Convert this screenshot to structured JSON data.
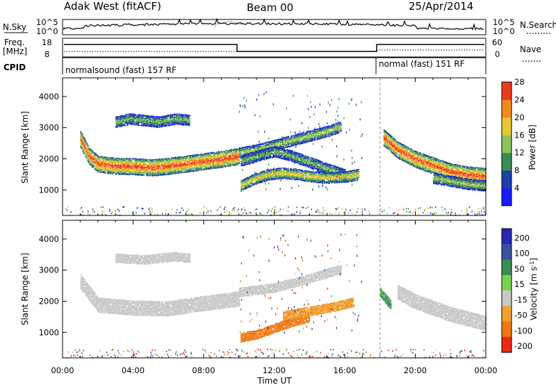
{
  "header": {
    "station": "Adak West (fitACF)",
    "beam": "Beam 00",
    "date": "25/Apr/2014"
  },
  "noise_panel": {
    "left_label": "N.Sky",
    "right_label": "N.Search",
    "left_ticks": [
      "10^5",
      "10^0"
    ],
    "right_ticks": [
      "10^5",
      "10^0"
    ]
  },
  "freq_panel": {
    "left_label": "Freq.",
    "left_unit": "[MHz]",
    "left_ticks": [
      "18",
      "8"
    ],
    "right_label": "Nave",
    "right_ticks": [
      "60",
      "0"
    ]
  },
  "cpid_panel": {
    "label": "CPID",
    "segments": [
      {
        "name": "normalsound (fast) 157 RF",
        "start_hour": 0,
        "end_hour": 18
      },
      {
        "name": "normal (fast) 151 RF",
        "start_hour": 18,
        "end_hour": 24
      }
    ]
  },
  "chart_data": [
    {
      "type": "heatmap",
      "title": "",
      "quantity": "Power",
      "ylabel": "Slant Range [km]",
      "xlabel": "Time UT",
      "xlim": [
        0,
        24
      ],
      "ylim": [
        180,
        4600
      ],
      "x_ticks": [
        "00:00",
        "04:00",
        "08:00",
        "12:00",
        "16:00",
        "20:00",
        "00:00"
      ],
      "y_ticks": [
        1000,
        2000,
        3000,
        4000
      ],
      "colorbar": {
        "label": "Power [dB]",
        "ticks": [
          4,
          8,
          12,
          16,
          20,
          24,
          28
        ],
        "range": [
          0,
          30
        ],
        "colors": [
          "#1a1aff",
          "#1f3fb0",
          "#3c8c55",
          "#8cc35a",
          "#e6c832",
          "#f08c1e",
          "#eb3c1e"
        ]
      },
      "echo_bands": [
        {
          "name": "main",
          "x": [
            1.0,
            1.5,
            2.0,
            3.0,
            4.0,
            5.0,
            6.0,
            7.0,
            8.0,
            9.0,
            10.0
          ],
          "y": [
            2650,
            2100,
            1850,
            1780,
            1770,
            1730,
            1780,
            1850,
            1930,
            2000,
            2100
          ],
          "peak_db": 28
        },
        {
          "name": "high-patch",
          "x": [
            3.0,
            3.8,
            4.6,
            5.4,
            6.4,
            7.2
          ],
          "y": [
            3200,
            3300,
            3250,
            3200,
            3300,
            3250
          ],
          "peak_db": 14
        },
        {
          "name": "rising-arc",
          "x": [
            10.0,
            11.0,
            12.0,
            13.0,
            14.0,
            15.0,
            15.8
          ],
          "y": [
            2200,
            2300,
            2450,
            2600,
            2750,
            2900,
            3050
          ],
          "peak_db": 16
        },
        {
          "name": "mid-arc",
          "x": [
            10.1,
            11.0,
            12.0,
            13.0,
            14.0,
            15.0,
            16.0
          ],
          "y": [
            1950,
            2100,
            2250,
            2100,
            1900,
            1700,
            1500
          ],
          "peak_db": 14
        },
        {
          "name": "low-arc",
          "x": [
            10.1,
            10.8,
            11.6,
            12.4,
            13.2,
            14.0,
            15.0,
            16.2,
            16.8
          ],
          "y": [
            1150,
            1350,
            1500,
            1560,
            1520,
            1450,
            1400,
            1450,
            1520
          ],
          "peak_db": 20
        },
        {
          "name": "evening",
          "x": [
            18.2,
            19.0,
            20.0,
            21.0,
            22.0,
            23.0,
            24.0
          ],
          "y": [
            2700,
            2300,
            2000,
            1800,
            1600,
            1500,
            1450
          ],
          "peak_db": 28
        },
        {
          "name": "evening-lower",
          "x": [
            21.0,
            22.0,
            23.0,
            24.0
          ],
          "y": [
            1400,
            1300,
            1200,
            1150
          ],
          "peak_db": 16
        }
      ]
    },
    {
      "type": "heatmap",
      "title": "",
      "quantity": "Velocity",
      "ylabel": "Slant Range [km]",
      "xlabel": "Time UT",
      "xlim": [
        0,
        24
      ],
      "ylim": [
        180,
        4600
      ],
      "x_ticks": [
        "00:00",
        "04:00",
        "08:00",
        "12:00",
        "16:00",
        "20:00",
        "00:00"
      ],
      "y_ticks": [
        1000,
        2000,
        3000,
        4000
      ],
      "colorbar": {
        "label": "Velocity [m s^-1]",
        "ticks": [
          200,
          100,
          50,
          15,
          -15,
          -50,
          -100,
          -200
        ],
        "colors": [
          "#2828b4",
          "#3c50a0",
          "#3c8c55",
          "#78d250",
          "#c8c8c8",
          "#f0a032",
          "#f07814",
          "#eb2814"
        ]
      },
      "echo_bands": [
        {
          "name": "ground-scatter",
          "x": [
            1.0,
            2.0,
            4.0,
            6.0,
            8.0,
            10.0
          ],
          "y": [
            2650,
            1900,
            1800,
            1780,
            1950,
            2100
          ],
          "velocity": 0
        },
        {
          "name": "ground-scatter-high",
          "x": [
            3.0,
            4.6,
            6.4,
            7.2
          ],
          "y": [
            3400,
            3350,
            3450,
            3400
          ],
          "velocity": 0
        },
        {
          "name": "rising-arc",
          "x": [
            10.0,
            12.0,
            14.0,
            15.8
          ],
          "y": [
            2300,
            2450,
            2750,
            3050
          ],
          "velocity": 0
        },
        {
          "name": "low-arc",
          "x": [
            10.1,
            11.0,
            12.0,
            13.0,
            14.0
          ],
          "y": [
            850,
            950,
            1150,
            1350,
            1500
          ],
          "velocity": -80
        },
        {
          "name": "mid-arc",
          "x": [
            12.5,
            13.5,
            14.5,
            15.5,
            16.5
          ],
          "y": [
            1550,
            1650,
            1750,
            1850,
            2000
          ],
          "velocity": -40
        },
        {
          "name": "evening-green",
          "x": [
            18.0,
            18.3,
            18.6
          ],
          "y": [
            2300,
            2100,
            1900
          ],
          "velocity": 40
        },
        {
          "name": "evening-grey",
          "x": [
            19.0,
            20.0,
            21.0,
            22.0,
            23.0,
            24.0
          ],
          "y": [
            2300,
            2000,
            1800,
            1600,
            1450,
            1300
          ],
          "velocity": 0
        }
      ]
    }
  ]
}
